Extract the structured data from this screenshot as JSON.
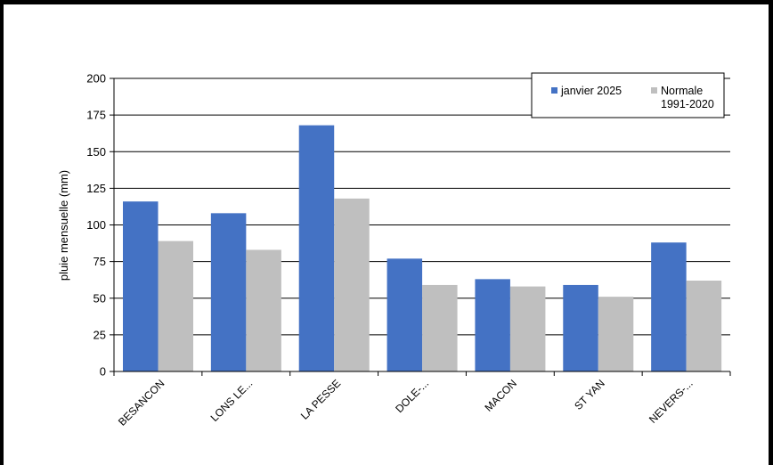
{
  "chart_data": {
    "type": "bar",
    "categories": [
      "BESANCON",
      "LONS LE...",
      "LA PESSE",
      "DOLE-...",
      "MACON",
      "ST YAN",
      "NEVERS-..."
    ],
    "series": [
      {
        "name": "janvier 2025",
        "color": "#4472C4",
        "values": [
          116,
          108,
          168,
          77,
          63,
          59,
          88
        ]
      },
      {
        "name": "Normale 1991-2020",
        "color": "#BFBFBF",
        "values": [
          89,
          83,
          118,
          59,
          58,
          51,
          62
        ]
      }
    ],
    "title": "",
    "xlabel": "",
    "ylabel": "pluie mensuelle (mm)",
    "ylim": [
      0,
      200
    ],
    "yticks": [
      0,
      25,
      50,
      75,
      100,
      125,
      150,
      175,
      200
    ],
    "grid": true,
    "legend_position": "top-right",
    "legend": {
      "entries": [
        {
          "lines": [
            "janvier 2025"
          ],
          "color": "#4472C4"
        },
        {
          "lines": [
            "Normale",
            "1991-2020"
          ],
          "color": "#BFBFBF"
        }
      ]
    }
  }
}
